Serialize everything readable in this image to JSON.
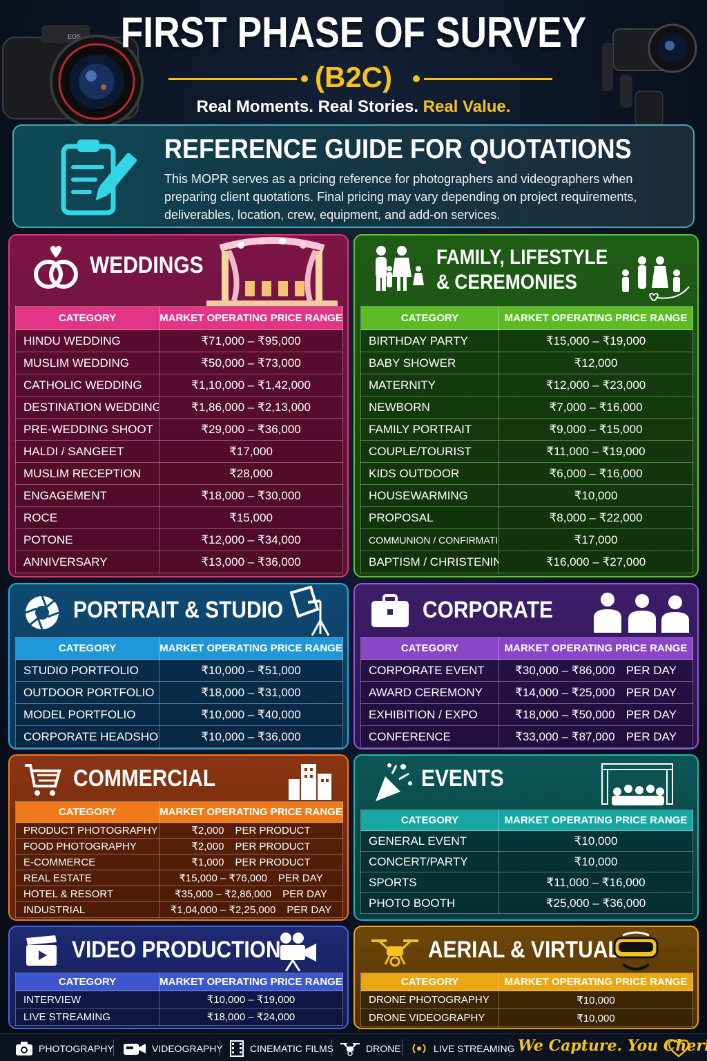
{
  "header": {
    "title": "FIRST PHASE OF SURVEY",
    "subtitle": "(B2C)",
    "tagline_white": "Real Moments. Real Stories.",
    "tagline_accent": "Real Value.",
    "camera_brand": "EOS"
  },
  "reference": {
    "title": "REFERENCE GUIDE FOR QUOTATIONS",
    "text": "This MOPR serves as a pricing reference for photographers and videographers when preparing client quotations. Final pricing may vary depending on project requirements, deliverables, location, crew, equipment, and add-on services."
  },
  "columns": {
    "category": "CATEGORY",
    "price": "MARKET OPERATING PRICE RANGE"
  },
  "weddings": {
    "title": "WEDDINGS",
    "rows": [
      [
        "HINDU WEDDING",
        "₹71,000 – ₹95,000"
      ],
      [
        "MUSLIM WEDDING",
        "₹50,000 – ₹73,000"
      ],
      [
        "CATHOLIC WEDDING",
        "₹1,10,000 – ₹1,42,000"
      ],
      [
        "DESTINATION WEDDING",
        "₹1,86,000 – ₹2,13,000"
      ],
      [
        "PRE-WEDDING SHOOT",
        "₹29,000 – ₹36,000"
      ],
      [
        "HALDI / SANGEET",
        "₹17,000"
      ],
      [
        "MUSLIM RECEPTION",
        "₹28,000"
      ],
      [
        "ENGAGEMENT",
        "₹18,000 – ₹30,000"
      ],
      [
        "ROCE",
        "₹15,000"
      ],
      [
        "POTONE",
        "₹12,000 – ₹34,000"
      ],
      [
        "ANNIVERSARY",
        "₹13,000 – ₹36,000"
      ]
    ]
  },
  "family": {
    "title_line1": "FAMILY, LIFESTYLE",
    "title_line2": "& CEREMONIES",
    "rows": [
      [
        "BIRTHDAY PARTY",
        "₹15,000 – ₹19,000"
      ],
      [
        "BABY SHOWER",
        "₹12,000"
      ],
      [
        "MATERNITY",
        "₹12,000 – ₹23,000"
      ],
      [
        "NEWBORN",
        "₹7,000 – ₹16,000"
      ],
      [
        "FAMILY PORTRAIT",
        "₹9,000 – ₹15,000"
      ],
      [
        "COUPLE/TOURIST",
        "₹11,000 – ₹19,000"
      ],
      [
        "KIDS OUTDOOR",
        "₹6,000 – ₹16,000"
      ],
      [
        "HOUSEWARMING",
        "₹10,000"
      ],
      [
        "PROPOSAL",
        "₹8,000 – ₹22,000"
      ],
      [
        "COMMUNION / CONFIRMATION",
        "₹17,000"
      ],
      [
        "BAPTISM / CHRISTENING",
        "₹16,000 – ₹27,000"
      ]
    ]
  },
  "portrait": {
    "title": "PORTRAIT & STUDIO",
    "rows": [
      [
        "STUDIO PORTFOLIO",
        "₹10,000 – ₹51,000"
      ],
      [
        "OUTDOOR PORTFOLIO",
        "₹18,000 – ₹31,000"
      ],
      [
        "MODEL PORTFOLIO",
        "₹10,000 – ₹40,000"
      ],
      [
        "CORPORATE HEADSHOTS",
        "₹10,000 – ₹36,000"
      ]
    ]
  },
  "corporate": {
    "title": "CORPORATE",
    "rows": [
      [
        "CORPORATE EVENT",
        "₹30,000 – ₹86,000",
        "PER DAY"
      ],
      [
        "AWARD CEREMONY",
        "₹14,000 – ₹25,000",
        "PER DAY"
      ],
      [
        "EXHIBITION / EXPO",
        "₹18,000 – ₹50,000",
        "PER DAY"
      ],
      [
        "CONFERENCE",
        "₹33,000 – ₹87,000",
        "PER DAY"
      ]
    ]
  },
  "commercial": {
    "title": "COMMERCIAL",
    "rows": [
      [
        "PRODUCT PHOTOGRAPHY",
        "₹2,000",
        "PER PRODUCT"
      ],
      [
        "FOOD PHOTOGRAPHY",
        "₹2,000",
        "PER PRODUCT"
      ],
      [
        "E-COMMERCE",
        "₹1,000",
        "PER PRODUCT"
      ],
      [
        "REAL ESTATE",
        "₹15,000  –  ₹76,000",
        "PER DAY"
      ],
      [
        "HOTEL & RESORT",
        "₹35,000 – ₹2,86,000",
        "PER DAY"
      ],
      [
        "INDUSTRIAL",
        "₹1,04,000 – ₹2,25,000",
        "PER DAY"
      ]
    ]
  },
  "events": {
    "title": "EVENTS",
    "rows": [
      [
        "GENERAL EVENT",
        "₹10,000"
      ],
      [
        "CONCERT/PARTY",
        "₹10,000"
      ],
      [
        "SPORTS",
        "₹11,000  –  ₹16,000"
      ],
      [
        "PHOTO BOOTH",
        "₹25,000  –  ₹36,000"
      ]
    ]
  },
  "video": {
    "title": "VIDEO PRODUCTION",
    "rows": [
      [
        "INTERVIEW",
        "₹10,000 – ₹19,000"
      ],
      [
        "LIVE STREAMING",
        "₹18,000 – ₹24,000"
      ]
    ]
  },
  "aerial": {
    "title": "AERIAL & VIRTUAL",
    "rows": [
      [
        "DRONE PHOTOGRAPHY",
        "₹10,000"
      ],
      [
        "DRONE VIDEOGRAPHY",
        "₹10,000"
      ]
    ]
  },
  "footer": {
    "items": [
      "PHOTOGRAPHY",
      "VIDEOGRAPHY",
      "CINEMATIC FILMS",
      "DRONE",
      "LIVE STREAMING"
    ],
    "slogan": "We Capture. You Cherish."
  },
  "colors": {
    "accent_gold": "#f6c31c",
    "weddings": "#e23585",
    "family": "#5dbb26",
    "portrait": "#1e98d8",
    "corporate": "#8a45c8",
    "commercial": "#f07a1a",
    "events": "#17a7a2",
    "video": "#3e57cf",
    "aerial": "#e9a813"
  }
}
